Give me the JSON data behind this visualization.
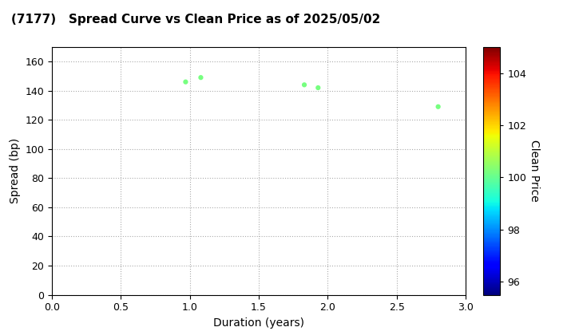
{
  "title": "(7177)   Spread Curve vs Clean Price as of 2025/05/02",
  "xlabel": "Duration (years)",
  "ylabel": "Spread (bp)",
  "colorbar_label": "Clean Price",
  "xlim": [
    0.0,
    3.0
  ],
  "ylim": [
    0,
    170
  ],
  "xticks": [
    0.0,
    0.5,
    1.0,
    1.5,
    2.0,
    2.5,
    3.0
  ],
  "yticks": [
    0,
    20,
    40,
    60,
    80,
    100,
    120,
    140,
    160
  ],
  "colorbar_range": [
    95.5,
    105.0
  ],
  "colorbar_ticks": [
    96,
    98,
    100,
    102,
    104
  ],
  "points": [
    {
      "duration": 0.97,
      "spread": 146,
      "price": 100.2
    },
    {
      "duration": 1.08,
      "spread": 149,
      "price": 100.2
    },
    {
      "duration": 1.83,
      "spread": 144,
      "price": 100.2
    },
    {
      "duration": 1.93,
      "spread": 142,
      "price": 100.2
    },
    {
      "duration": 2.8,
      "spread": 129,
      "price": 100.2
    }
  ],
  "cmap": "jet",
  "marker_size": 12,
  "background_color": "white",
  "grid_color": "#aaaaaa",
  "grid_style": "dotted",
  "grid_alpha": 1.0,
  "grid_linewidth": 0.8,
  "title_fontsize": 11,
  "axis_label_fontsize": 10,
  "tick_fontsize": 9,
  "colorbar_tick_fontsize": 9,
  "colorbar_label_fontsize": 10
}
